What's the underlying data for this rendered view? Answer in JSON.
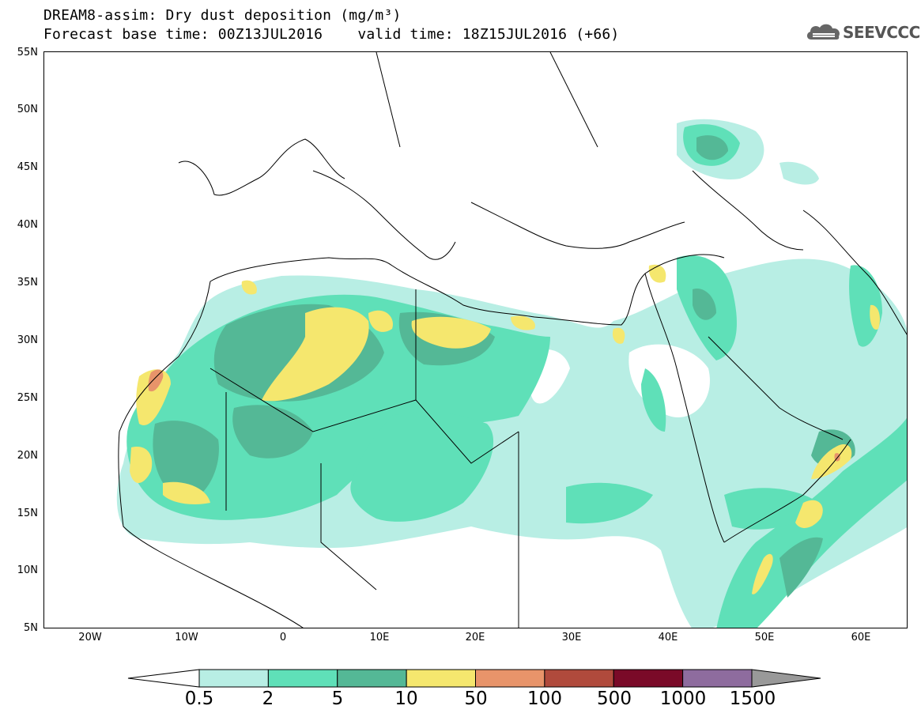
{
  "header": {
    "title_line_1": "DREAM8-assim: Dry dust deposition (mg/m³)",
    "title_line_2": "Forecast base time: 00Z13JUL2016    valid time: 18Z15JUL2016 (+66)"
  },
  "logo": {
    "text": "SEEVCCC",
    "icon": "cloud-icon"
  },
  "map": {
    "lat_labels": [
      "55N",
      "50N",
      "45N",
      "40N",
      "35N",
      "30N",
      "25N",
      "20N",
      "15N",
      "10N",
      "5N"
    ],
    "lon_labels": [
      "20W",
      "10W",
      "0",
      "10E",
      "20E",
      "30E",
      "40E",
      "50E",
      "60E"
    ],
    "lat_range": [
      5,
      55
    ],
    "lon_range": [
      -25,
      65
    ]
  },
  "colorbar": {
    "labels": [
      "0.5",
      "2",
      "5",
      "10",
      "50",
      "100",
      "500",
      "1000",
      "1500"
    ],
    "colors": [
      "#b8eee4",
      "#5fe0b8",
      "#54b896",
      "#f5e76e",
      "#e8946a",
      "#b04a3c",
      "#7a0a28",
      "#8e6c9e"
    ],
    "under_color": "#ffffff",
    "over_color": "#999999"
  },
  "legend_colors": {
    "light": "#b8eee4",
    "mid": "#5fe0b8",
    "dark": "#54b896",
    "yellow": "#f5e76e",
    "orange": "#e8946a"
  }
}
